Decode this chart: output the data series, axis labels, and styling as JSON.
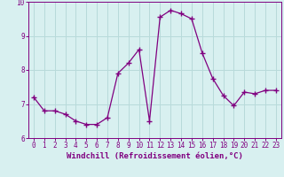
{
  "x": [
    0,
    1,
    2,
    3,
    4,
    5,
    6,
    7,
    8,
    9,
    10,
    11,
    12,
    13,
    14,
    15,
    16,
    17,
    18,
    19,
    20,
    21,
    22,
    23
  ],
  "y": [
    7.2,
    6.8,
    6.8,
    6.7,
    6.5,
    6.4,
    6.4,
    6.6,
    7.9,
    8.2,
    8.6,
    6.5,
    9.55,
    9.75,
    9.65,
    9.5,
    8.5,
    7.75,
    7.25,
    6.95,
    7.35,
    7.3,
    7.4,
    7.4
  ],
  "line_color": "#800080",
  "marker": "+",
  "marker_size": 4,
  "marker_lw": 1.0,
  "bg_color": "#d8f0f0",
  "grid_color": "#b8dada",
  "xlabel": "Windchill (Refroidissement éolien,°C)",
  "ylim": [
    6.0,
    10.0
  ],
  "xlim_min": -0.5,
  "xlim_max": 23.5,
  "yticks": [
    6,
    7,
    8,
    9,
    10
  ],
  "xticks": [
    0,
    1,
    2,
    3,
    4,
    5,
    6,
    7,
    8,
    9,
    10,
    11,
    12,
    13,
    14,
    15,
    16,
    17,
    18,
    19,
    20,
    21,
    22,
    23
  ],
  "label_fontsize": 6.5,
  "tick_fontsize": 5.5,
  "axis_color": "#800080",
  "line_width": 0.9
}
